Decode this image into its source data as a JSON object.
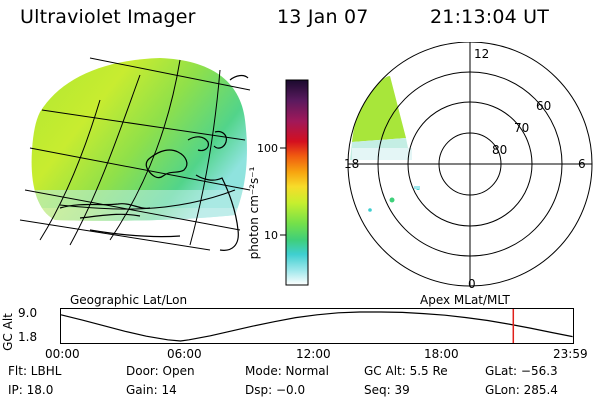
{
  "header": {
    "title": "Ultraviolet Imager",
    "date": "13 Jan 07",
    "time": "21:13:04 UT"
  },
  "colorbar": {
    "unit_label": "photon cm⁻²s⁻¹",
    "ticks": [
      "100",
      "10"
    ],
    "scale": "log",
    "colors": [
      "#1a0a2e",
      "#5a1a5e",
      "#a0195a",
      "#d40f1f",
      "#f05a10",
      "#f7a510",
      "#f7dc2a",
      "#c6ef2e",
      "#74e04a",
      "#3fcf7a",
      "#3fcfd0",
      "#a0e8ec",
      "#ffffff"
    ]
  },
  "geo_panel": {
    "label": "Geographic Lat/Lon"
  },
  "polar_panel": {
    "label": "Apex MLat/MLT",
    "mlt_labels": [
      "12",
      "18",
      "6",
      "0"
    ],
    "lat_labels": [
      "60",
      "70",
      "80"
    ]
  },
  "timeline": {
    "y_axis_label": "GC Alt",
    "y_ticks": [
      "9.0",
      "1.8"
    ],
    "x_ticks": [
      "00:00",
      "06:00",
      "12:00",
      "18:00",
      "23:59"
    ],
    "marker_time_hours": 21.2,
    "marker_color": "#e0201a",
    "altitude_curve": [
      [
        0,
        8.3
      ],
      [
        1,
        7.0
      ],
      [
        2,
        5.6
      ],
      [
        3,
        4.2
      ],
      [
        4,
        3.0
      ],
      [
        5,
        2.1
      ],
      [
        5.6,
        1.8
      ],
      [
        6,
        2.1
      ],
      [
        7,
        3.1
      ],
      [
        8,
        4.3
      ],
      [
        9,
        5.5
      ],
      [
        10,
        6.6
      ],
      [
        11,
        7.6
      ],
      [
        12,
        8.3
      ],
      [
        13,
        8.8
      ],
      [
        14,
        9.0
      ],
      [
        15,
        9.0
      ],
      [
        16,
        8.9
      ],
      [
        17,
        8.6
      ],
      [
        18,
        8.2
      ],
      [
        19,
        7.6
      ],
      [
        20,
        6.9
      ],
      [
        21,
        6.0
      ],
      [
        22,
        5.0
      ],
      [
        23,
        3.9
      ],
      [
        23.98,
        2.9
      ]
    ]
  },
  "info": {
    "flt": "Flt: LBHL",
    "door": "Door: Open",
    "mode": "Mode: Normal",
    "gc_alt": "GC Alt: 5.5 Re",
    "glat": "GLat: −56.3",
    "ip": "IP: 18.0",
    "gain": "Gain: 14",
    "dsp": "Dsp:    −0.0",
    "seq": "Seq: 39",
    "glon": "GLon: 285.4"
  }
}
